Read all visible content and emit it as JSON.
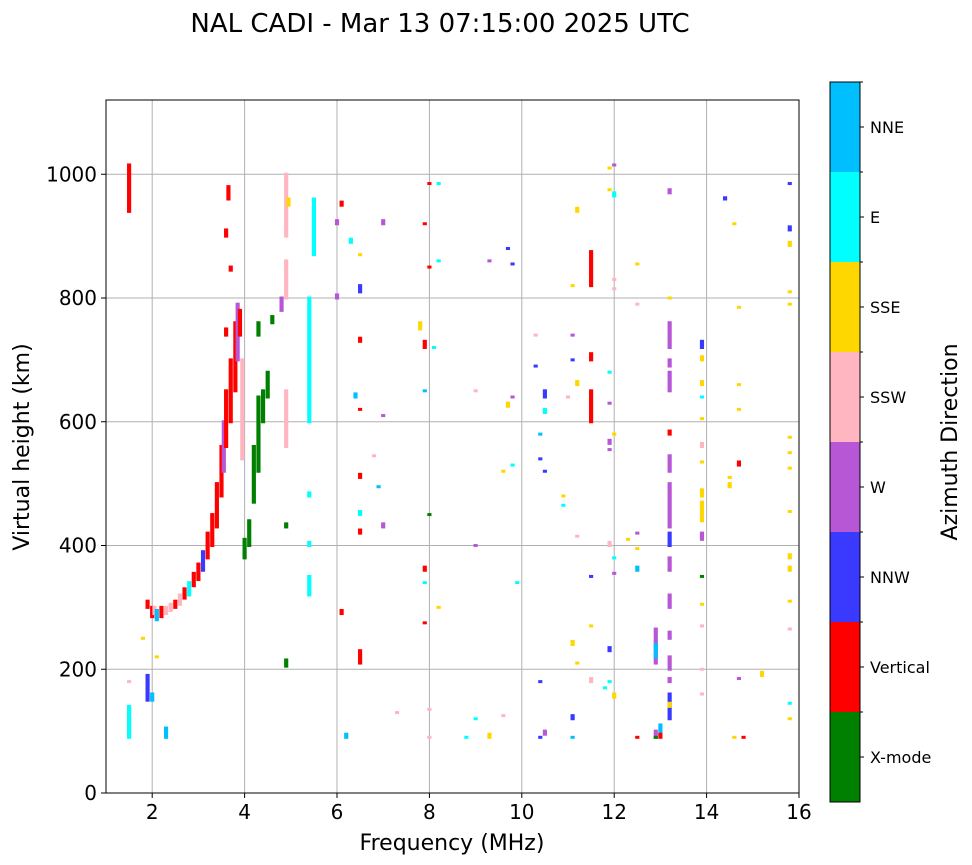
{
  "chart_data": {
    "type": "scatter",
    "title": "NAL CADI - Mar 13 07:15:00 2025 UTC",
    "xlabel": "Frequency (MHz)",
    "ylabel": "Virtual height (km)",
    "xlim": [
      1,
      16
    ],
    "ylim": [
      0,
      1120
    ],
    "xticks": [
      2,
      4,
      6,
      8,
      10,
      12,
      14,
      16
    ],
    "yticks": [
      0,
      200,
      400,
      600,
      800,
      1000
    ],
    "grid": true,
    "colorbar": {
      "label": "Azimuth Direction",
      "categories": [
        "X-mode",
        "Vertical",
        "NNW",
        "W",
        "SSW",
        "SSE",
        "E",
        "NNE"
      ],
      "colors": [
        "#008000",
        "#ff0000",
        "#3a3aff",
        "#b857d6",
        "#ffb6c1",
        "#ffd700",
        "#00ffff",
        "#00bfff"
      ]
    },
    "segments_format": "[frequency_MHz, height_start_km, height_end_km, category_index]",
    "segments": [
      [
        1.5,
        940,
        1015,
        1
      ],
      [
        1.5,
        90,
        140,
        6
      ],
      [
        1.5,
        180,
        180,
        4
      ],
      [
        1.9,
        150,
        190,
        2
      ],
      [
        2.0,
        150,
        160,
        7
      ],
      [
        2.3,
        90,
        105,
        7
      ],
      [
        1.8,
        250,
        250,
        5
      ],
      [
        2.1,
        220,
        220,
        5
      ],
      [
        1.9,
        300,
        310,
        1
      ],
      [
        2.0,
        285,
        300,
        1
      ],
      [
        2.05,
        290,
        300,
        4
      ],
      [
        2.1,
        280,
        295,
        7
      ],
      [
        2.2,
        285,
        300,
        1
      ],
      [
        2.3,
        290,
        300,
        4
      ],
      [
        2.4,
        295,
        305,
        4
      ],
      [
        2.5,
        300,
        310,
        1
      ],
      [
        2.6,
        305,
        320,
        4
      ],
      [
        2.7,
        315,
        330,
        1
      ],
      [
        2.8,
        320,
        340,
        6
      ],
      [
        2.9,
        335,
        355,
        1
      ],
      [
        3.0,
        345,
        370,
        1
      ],
      [
        3.1,
        360,
        390,
        2
      ],
      [
        3.2,
        380,
        420,
        1
      ],
      [
        3.3,
        400,
        450,
        1
      ],
      [
        3.4,
        430,
        500,
        1
      ],
      [
        3.5,
        480,
        560,
        1
      ],
      [
        3.55,
        520,
        600,
        3
      ],
      [
        3.6,
        560,
        650,
        1
      ],
      [
        3.7,
        600,
        700,
        1
      ],
      [
        3.8,
        650,
        760,
        1
      ],
      [
        3.85,
        700,
        790,
        3
      ],
      [
        3.9,
        740,
        780,
        1
      ],
      [
        3.95,
        540,
        700,
        4
      ],
      [
        3.65,
        960,
        980,
        1
      ],
      [
        3.6,
        900,
        910,
        1
      ],
      [
        3.7,
        845,
        850,
        1
      ],
      [
        3.6,
        740,
        750,
        1
      ],
      [
        4.0,
        380,
        410,
        0
      ],
      [
        4.1,
        400,
        440,
        0
      ],
      [
        4.2,
        470,
        560,
        0
      ],
      [
        4.3,
        520,
        640,
        0
      ],
      [
        4.4,
        600,
        650,
        0
      ],
      [
        4.5,
        640,
        680,
        0
      ],
      [
        4.6,
        760,
        770,
        0
      ],
      [
        4.3,
        740,
        760,
        0
      ],
      [
        4.9,
        205,
        215,
        0
      ],
      [
        4.9,
        430,
        435,
        0
      ],
      [
        4.9,
        560,
        650,
        4
      ],
      [
        4.9,
        800,
        860,
        4
      ],
      [
        4.9,
        900,
        1000,
        4
      ],
      [
        4.95,
        950,
        960,
        5
      ],
      [
        4.8,
        780,
        800,
        3
      ],
      [
        5.4,
        600,
        800,
        6
      ],
      [
        5.4,
        320,
        350,
        6
      ],
      [
        5.4,
        400,
        405,
        6
      ],
      [
        5.4,
        480,
        485,
        6
      ],
      [
        5.5,
        870,
        960,
        6
      ],
      [
        6.0,
        800,
        805,
        3
      ],
      [
        6.0,
        920,
        925,
        3
      ],
      [
        6.1,
        950,
        955,
        1
      ],
      [
        6.2,
        90,
        95,
        7
      ],
      [
        6.1,
        290,
        295,
        1
      ],
      [
        6.5,
        210,
        230,
        1
      ],
      [
        6.5,
        420,
        425,
        1
      ],
      [
        6.5,
        450,
        455,
        6
      ],
      [
        6.5,
        510,
        515,
        1
      ],
      [
        6.5,
        620,
        620,
        1
      ],
      [
        6.4,
        640,
        645,
        7
      ],
      [
        6.5,
        730,
        735,
        1
      ],
      [
        6.3,
        890,
        895,
        6
      ],
      [
        6.5,
        810,
        820,
        2
      ],
      [
        6.5,
        870,
        870,
        5
      ],
      [
        7.0,
        920,
        925,
        3
      ],
      [
        7.0,
        430,
        435,
        3
      ],
      [
        7.0,
        610,
        610,
        3
      ],
      [
        6.8,
        545,
        545,
        4
      ],
      [
        6.9,
        495,
        495,
        7
      ],
      [
        7.3,
        130,
        130,
        4
      ],
      [
        7.9,
        920,
        920,
        1
      ],
      [
        8.0,
        985,
        985,
        1
      ],
      [
        8.2,
        985,
        985,
        6
      ],
      [
        8.0,
        850,
        850,
        1
      ],
      [
        8.2,
        860,
        860,
        6
      ],
      [
        7.9,
        720,
        730,
        1
      ],
      [
        8.1,
        720,
        720,
        6
      ],
      [
        7.9,
        650,
        650,
        7
      ],
      [
        7.9,
        360,
        365,
        1
      ],
      [
        7.9,
        340,
        340,
        6
      ],
      [
        7.9,
        275,
        275,
        1
      ],
      [
        8.2,
        300,
        300,
        5
      ],
      [
        8.0,
        90,
        90,
        4
      ],
      [
        8.0,
        450,
        450,
        0
      ],
      [
        7.8,
        750,
        760,
        5
      ],
      [
        8.0,
        135,
        135,
        4
      ],
      [
        9.0,
        400,
        400,
        3
      ],
      [
        9.0,
        650,
        650,
        4
      ],
      [
        9.3,
        860,
        860,
        3
      ],
      [
        9.7,
        880,
        880,
        2
      ],
      [
        9.8,
        855,
        855,
        2
      ],
      [
        9.7,
        625,
        630,
        5
      ],
      [
        9.8,
        640,
        640,
        3
      ],
      [
        9.6,
        520,
        520,
        5
      ],
      [
        9.8,
        530,
        530,
        6
      ],
      [
        9.9,
        340,
        340,
        6
      ],
      [
        9.0,
        120,
        120,
        6
      ],
      [
        8.8,
        90,
        90,
        6
      ],
      [
        9.3,
        90,
        95,
        5
      ],
      [
        9.6,
        125,
        125,
        4
      ],
      [
        10.3,
        690,
        690,
        2
      ],
      [
        10.4,
        580,
        580,
        7
      ],
      [
        10.4,
        540,
        540,
        2
      ],
      [
        10.5,
        640,
        650,
        2
      ],
      [
        10.5,
        615,
        620,
        6
      ],
      [
        10.5,
        520,
        520,
        2
      ],
      [
        10.3,
        740,
        740,
        4
      ],
      [
        10.4,
        90,
        90,
        2
      ],
      [
        10.5,
        95,
        100,
        3
      ],
      [
        10.4,
        180,
        180,
        2
      ],
      [
        10.9,
        480,
        480,
        5
      ],
      [
        10.9,
        465,
        465,
        6
      ],
      [
        11.1,
        90,
        90,
        7
      ],
      [
        11.1,
        120,
        125,
        2
      ],
      [
        11.1,
        240,
        245,
        5
      ],
      [
        11.2,
        210,
        210,
        5
      ],
      [
        11.2,
        940,
        945,
        5
      ],
      [
        11.1,
        820,
        820,
        5
      ],
      [
        11.1,
        740,
        740,
        3
      ],
      [
        11.2,
        660,
        665,
        5
      ],
      [
        11.2,
        415,
        415,
        4
      ],
      [
        11.1,
        700,
        700,
        2
      ],
      [
        11.0,
        640,
        640,
        4
      ],
      [
        11.5,
        820,
        875,
        1
      ],
      [
        11.5,
        600,
        650,
        1
      ],
      [
        11.5,
        700,
        710,
        1
      ],
      [
        11.5,
        350,
        350,
        2
      ],
      [
        11.5,
        270,
        270,
        5
      ],
      [
        11.5,
        180,
        185,
        4
      ],
      [
        11.9,
        1010,
        1010,
        5
      ],
      [
        12.0,
        1015,
        1015,
        3
      ],
      [
        12.0,
        965,
        970,
        6
      ],
      [
        11.9,
        975,
        975,
        5
      ],
      [
        12.0,
        830,
        830,
        4
      ],
      [
        12.0,
        815,
        815,
        4
      ],
      [
        11.9,
        680,
        680,
        6
      ],
      [
        11.9,
        630,
        630,
        3
      ],
      [
        11.9,
        565,
        570,
        3
      ],
      [
        11.9,
        555,
        555,
        3
      ],
      [
        12.0,
        580,
        580,
        5
      ],
      [
        11.9,
        400,
        405,
        4
      ],
      [
        12.0,
        380,
        380,
        6
      ],
      [
        12.0,
        355,
        355,
        3
      ],
      [
        11.9,
        230,
        235,
        2
      ],
      [
        12.0,
        155,
        160,
        5
      ],
      [
        11.9,
        180,
        180,
        6
      ],
      [
        11.8,
        170,
        170,
        6
      ],
      [
        12.3,
        410,
        410,
        5
      ],
      [
        12.5,
        855,
        855,
        5
      ],
      [
        12.5,
        790,
        790,
        4
      ],
      [
        12.5,
        420,
        420,
        3
      ],
      [
        12.5,
        395,
        395,
        5
      ],
      [
        12.5,
        360,
        365,
        7
      ],
      [
        12.5,
        90,
        90,
        1
      ],
      [
        12.9,
        210,
        265,
        3
      ],
      [
        12.9,
        220,
        240,
        7
      ],
      [
        13.0,
        95,
        110,
        7
      ],
      [
        12.9,
        90,
        100,
        3
      ],
      [
        12.9,
        90,
        90,
        0
      ],
      [
        13.0,
        90,
        95,
        1
      ],
      [
        13.2,
        970,
        975,
        3
      ],
      [
        13.2,
        800,
        800,
        5
      ],
      [
        13.2,
        720,
        760,
        3
      ],
      [
        13.2,
        690,
        700,
        3
      ],
      [
        13.2,
        650,
        680,
        3
      ],
      [
        13.2,
        580,
        585,
        1
      ],
      [
        13.2,
        520,
        545,
        3
      ],
      [
        13.2,
        430,
        500,
        3
      ],
      [
        13.2,
        400,
        420,
        2
      ],
      [
        13.2,
        360,
        380,
        3
      ],
      [
        13.2,
        300,
        320,
        3
      ],
      [
        13.2,
        250,
        260,
        3
      ],
      [
        13.2,
        200,
        220,
        3
      ],
      [
        13.2,
        180,
        185,
        3
      ],
      [
        13.2,
        120,
        160,
        2
      ],
      [
        13.2,
        140,
        145,
        5
      ],
      [
        13.9,
        720,
        730,
        2
      ],
      [
        13.9,
        700,
        705,
        5
      ],
      [
        13.9,
        660,
        665,
        5
      ],
      [
        13.9,
        640,
        640,
        6
      ],
      [
        13.9,
        605,
        605,
        5
      ],
      [
        13.9,
        560,
        565,
        4
      ],
      [
        13.9,
        535,
        535,
        5
      ],
      [
        13.9,
        480,
        490,
        5
      ],
      [
        13.9,
        440,
        470,
        5
      ],
      [
        13.9,
        410,
        420,
        3
      ],
      [
        13.9,
        350,
        350,
        0
      ],
      [
        13.9,
        305,
        305,
        5
      ],
      [
        13.9,
        270,
        270,
        4
      ],
      [
        13.9,
        200,
        200,
        4
      ],
      [
        13.9,
        160,
        160,
        4
      ],
      [
        14.4,
        960,
        962,
        2
      ],
      [
        14.6,
        920,
        920,
        5
      ],
      [
        14.5,
        510,
        510,
        5
      ],
      [
        14.5,
        495,
        500,
        5
      ],
      [
        14.7,
        785,
        785,
        5
      ],
      [
        14.7,
        660,
        660,
        5
      ],
      [
        14.7,
        620,
        620,
        5
      ],
      [
        14.7,
        530,
        535,
        1
      ],
      [
        14.7,
        185,
        185,
        3
      ],
      [
        14.6,
        90,
        90,
        5
      ],
      [
        14.8,
        90,
        90,
        1
      ],
      [
        15.2,
        190,
        195,
        5
      ],
      [
        15.8,
        985,
        985,
        2
      ],
      [
        15.8,
        910,
        915,
        2
      ],
      [
        15.8,
        885,
        890,
        5
      ],
      [
        15.8,
        810,
        810,
        5
      ],
      [
        15.8,
        790,
        790,
        5
      ],
      [
        15.8,
        575,
        575,
        5
      ],
      [
        15.8,
        550,
        550,
        5
      ],
      [
        15.8,
        525,
        525,
        5
      ],
      [
        15.8,
        455,
        455,
        5
      ],
      [
        15.8,
        380,
        385,
        5
      ],
      [
        15.8,
        360,
        365,
        5
      ],
      [
        15.8,
        310,
        310,
        5
      ],
      [
        15.8,
        265,
        265,
        4
      ],
      [
        15.8,
        145,
        145,
        6
      ],
      [
        15.8,
        120,
        120,
        5
      ]
    ]
  }
}
